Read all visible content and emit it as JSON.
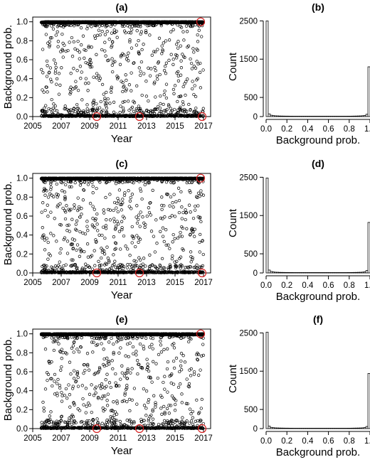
{
  "chart_data": [
    {
      "panel": "(a)",
      "type": "scatter",
      "title": "(a)",
      "xlabel": "Year",
      "ylabel": "Background prob.",
      "xlim": [
        2005,
        2017.5
      ],
      "ylim": [
        0,
        1.05
      ],
      "xticks": [
        "2005",
        "2007",
        "2009",
        "2011",
        "2013",
        "2015",
        "2017"
      ],
      "yticks": [
        "0.0",
        "0.2",
        "0.4",
        "0.6",
        "0.8",
        "1.0"
      ],
      "grid": false,
      "highlight_color": "#d62020",
      "highlight_points": [
        {
          "x": 2009.5,
          "y": 0.0
        },
        {
          "x": 2012.5,
          "y": 0.0
        },
        {
          "x": 2016.8,
          "y": 1.0
        },
        {
          "x": 2016.9,
          "y": 0.0
        }
      ]
    },
    {
      "panel": "(b)",
      "type": "bar",
      "title": "(b)",
      "xlabel": "Background prob.",
      "ylabel": "Count",
      "xlim": [
        0,
        1
      ],
      "ylim": [
        0,
        2600
      ],
      "xticks": [
        "0.0",
        "0.2",
        "0.4",
        "0.6",
        "0.8",
        "1.0"
      ],
      "yticks": [
        "0",
        "500",
        "1500",
        "2500"
      ],
      "bin_width": 0.02,
      "values": [
        2500,
        70,
        35,
        25,
        20,
        18,
        15,
        14,
        13,
        12,
        12,
        11,
        11,
        10,
        10,
        10,
        10,
        10,
        10,
        10,
        10,
        10,
        10,
        10,
        10,
        10,
        10,
        10,
        10,
        10,
        10,
        10,
        10,
        10,
        10,
        10,
        10,
        10,
        10,
        11,
        11,
        12,
        13,
        14,
        16,
        18,
        22,
        28,
        60,
        1300
      ]
    },
    {
      "panel": "(c)",
      "type": "scatter",
      "title": "(c)",
      "xlabel": "Year",
      "ylabel": "Background prob.",
      "xlim": [
        2005,
        2017.5
      ],
      "ylim": [
        0,
        1.05
      ],
      "xticks": [
        "2005",
        "2007",
        "2009",
        "2011",
        "2013",
        "2015",
        "2017"
      ],
      "yticks": [
        "0.0",
        "0.2",
        "0.4",
        "0.6",
        "0.8",
        "1.0"
      ],
      "grid": false,
      "highlight_color": "#d62020",
      "highlight_points": [
        {
          "x": 2009.5,
          "y": 0.0
        },
        {
          "x": 2012.5,
          "y": 0.0
        },
        {
          "x": 2016.8,
          "y": 1.0
        },
        {
          "x": 2016.9,
          "y": 0.0
        }
      ]
    },
    {
      "panel": "(d)",
      "type": "bar",
      "title": "(d)",
      "xlabel": "Background prob.",
      "ylabel": "Count",
      "xlim": [
        0,
        1
      ],
      "ylim": [
        0,
        2600
      ],
      "xticks": [
        "0.0",
        "0.2",
        "0.4",
        "0.6",
        "0.8",
        "1.0"
      ],
      "yticks": [
        "0",
        "500",
        "1500",
        "2500"
      ],
      "bin_width": 0.02,
      "values": [
        2480,
        75,
        38,
        26,
        20,
        18,
        15,
        14,
        13,
        12,
        12,
        11,
        11,
        10,
        10,
        10,
        10,
        10,
        10,
        10,
        10,
        10,
        10,
        10,
        10,
        10,
        10,
        10,
        10,
        10,
        10,
        10,
        10,
        10,
        10,
        10,
        10,
        10,
        10,
        11,
        11,
        12,
        13,
        14,
        16,
        18,
        22,
        30,
        65,
        1320
      ]
    },
    {
      "panel": "(e)",
      "type": "scatter",
      "title": "(e)",
      "xlabel": "Year",
      "ylabel": "Background prob.",
      "xlim": [
        2005,
        2017.5
      ],
      "ylim": [
        0,
        1.05
      ],
      "xticks": [
        "2005",
        "2007",
        "2009",
        "2011",
        "2013",
        "2015",
        "2017"
      ],
      "yticks": [
        "0.0",
        "0.2",
        "0.4",
        "0.6",
        "0.8",
        "1.0"
      ],
      "grid": false,
      "highlight_color": "#d62020",
      "highlight_points": [
        {
          "x": 2009.5,
          "y": 0.0
        },
        {
          "x": 2012.5,
          "y": 0.0
        },
        {
          "x": 2016.8,
          "y": 1.0
        },
        {
          "x": 2016.9,
          "y": 0.0
        }
      ]
    },
    {
      "panel": "(f)",
      "type": "bar",
      "title": "(f)",
      "xlabel": "Background prob.",
      "ylabel": "Count",
      "xlim": [
        0,
        1
      ],
      "ylim": [
        0,
        2600
      ],
      "xticks": [
        "0.0",
        "0.2",
        "0.4",
        "0.6",
        "0.8",
        "1.0"
      ],
      "yticks": [
        "0",
        "500",
        "1500",
        "2500"
      ],
      "bin_width": 0.02,
      "values": [
        2520,
        65,
        32,
        24,
        19,
        17,
        15,
        14,
        13,
        12,
        12,
        11,
        11,
        10,
        10,
        10,
        10,
        10,
        10,
        10,
        10,
        10,
        10,
        10,
        10,
        10,
        10,
        10,
        10,
        10,
        10,
        10,
        10,
        10,
        10,
        10,
        10,
        10,
        10,
        11,
        11,
        12,
        13,
        14,
        15,
        17,
        20,
        26,
        55,
        1440
      ]
    }
  ]
}
